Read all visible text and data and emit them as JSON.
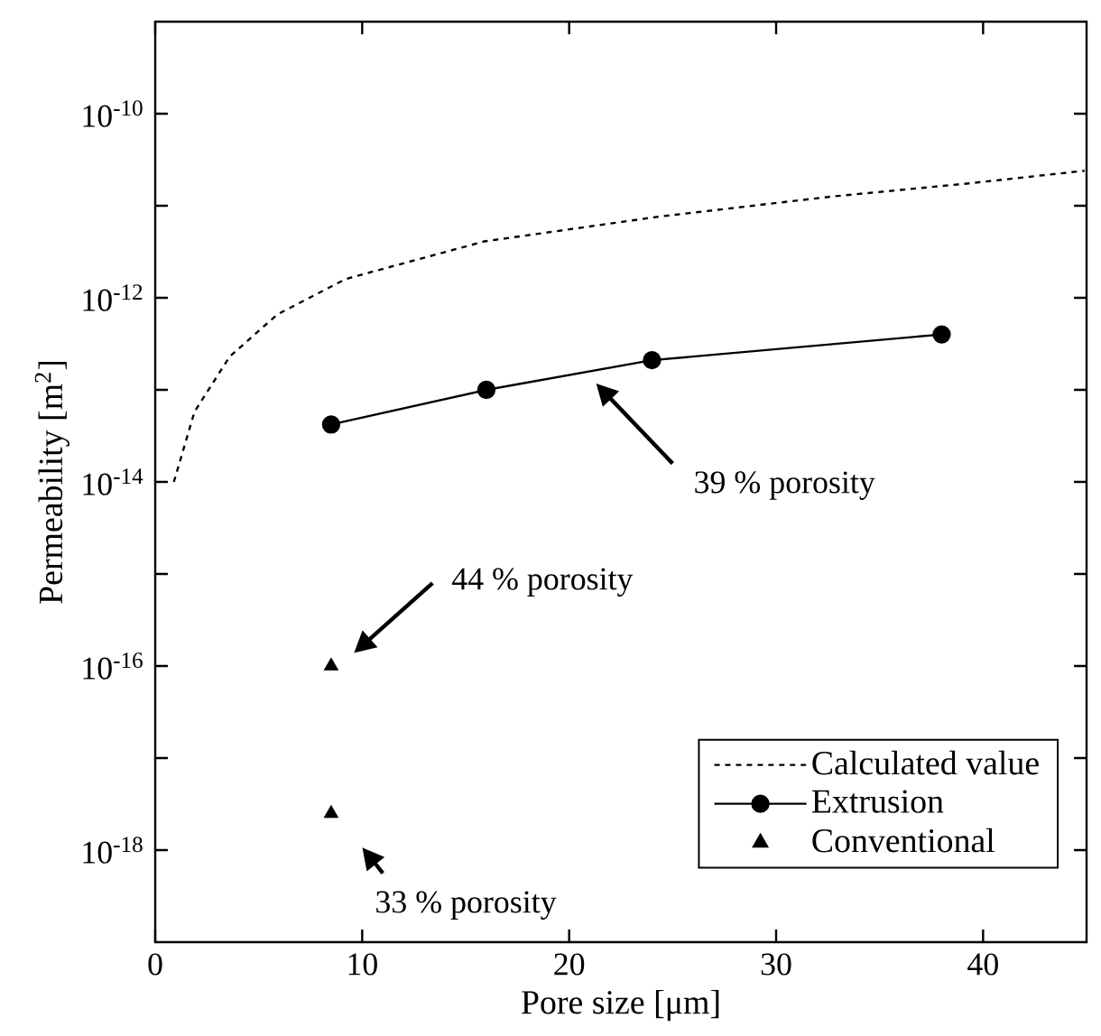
{
  "chart_data": {
    "type": "line",
    "xlabel": "Pore size [μm]",
    "ylabel": "Permeability [m$^{2}$]",
    "log": "y",
    "xlim": [
      0,
      45
    ],
    "ylim": [
      1e-19,
      1e-09
    ],
    "xticks": [
      0,
      10,
      20,
      30,
      40
    ],
    "yticks": [
      {
        "value": 1e-18,
        "label": "10$^{-18}$"
      },
      {
        "value": 1e-17,
        "label": null
      },
      {
        "value": 1e-16,
        "label": "10$^{-16}$"
      },
      {
        "value": 1e-15,
        "label": null
      },
      {
        "value": 1e-14,
        "label": "10$^{-14}$"
      },
      {
        "value": 1e-13,
        "label": null
      },
      {
        "value": 1e-12,
        "label": "10$^{-12}$"
      },
      {
        "value": 1e-11,
        "label": null
      },
      {
        "value": 1e-10,
        "label": "10$^{-10}$"
      }
    ],
    "legend": "bottom right",
    "series": [
      {
        "name": "Calculated value",
        "color": "#000000",
        "line_style": "dashed",
        "marker": "none",
        "x": [
          0.9,
          1.9,
          3.6,
          5.9,
          9.2,
          15.9,
          24.3,
          32.7,
          39.3,
          44.9
        ],
        "values": [
          1e-14,
          5.8e-14,
          2.3e-13,
          6.6e-13,
          1.6e-12,
          4.1e-12,
          7.6e-12,
          1.26e-11,
          1.75e-11,
          2.4e-11
        ]
      },
      {
        "name": "Extrusion",
        "color": "#000000",
        "line_style": "solid",
        "marker": "circle",
        "x": [
          8.5,
          16,
          24,
          38
        ],
        "values": [
          4.2e-14,
          1e-13,
          2.1e-13,
          4e-13
        ]
      },
      {
        "name": "Conventional",
        "type": "scatter",
        "color": "#000000",
        "marker": "triangle",
        "x": [
          8.5,
          8.5
        ],
        "values": [
          1e-16,
          2.5e-18
        ]
      }
    ],
    "annotations": [
      "39 % porosity",
      "44 % porosity",
      "33 % porosity"
    ]
  }
}
